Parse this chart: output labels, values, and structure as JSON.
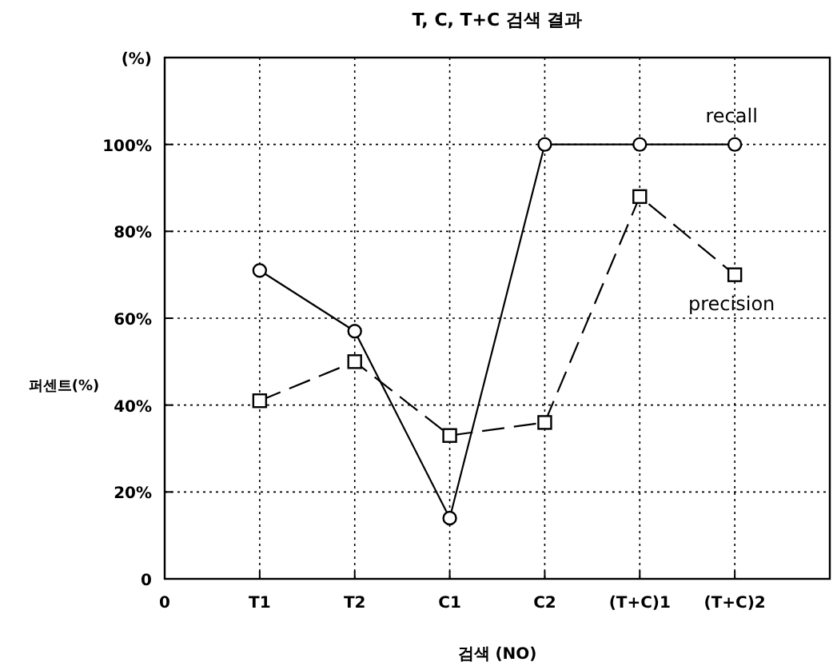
{
  "chart_data": {
    "type": "line",
    "title": "T, C, T+C 검색 결과",
    "xlabel": "검색 (NO)",
    "ylabel": "퍼센트(%)",
    "categories": [
      "0",
      "T1",
      "T2",
      "C1",
      "C2",
      "(T+C)1",
      "(T+C)2",
      null
    ],
    "ylim": [
      0,
      120
    ],
    "yticks": [
      0,
      {
        "value": 20,
        "label": "20%"
      },
      {
        "value": 40,
        "label": "40%"
      },
      {
        "value": 60,
        "label": "60%"
      },
      {
        "value": 80,
        "label": "80%"
      },
      {
        "value": 100,
        "label": "100%"
      },
      {
        "value": 120,
        "label": "(%)"
      }
    ],
    "grid": true,
    "series": [
      {
        "name": "recall",
        "color": "#000000",
        "marker": "circle",
        "line_style": "solid",
        "values": [
          null,
          71,
          57,
          14,
          100,
          100,
          100,
          null
        ]
      },
      {
        "name": "precision",
        "color": "#000000",
        "marker": "square",
        "line_style": "dashed",
        "values": [
          null,
          41,
          50,
          33,
          36,
          88,
          70,
          null
        ]
      }
    ]
  }
}
